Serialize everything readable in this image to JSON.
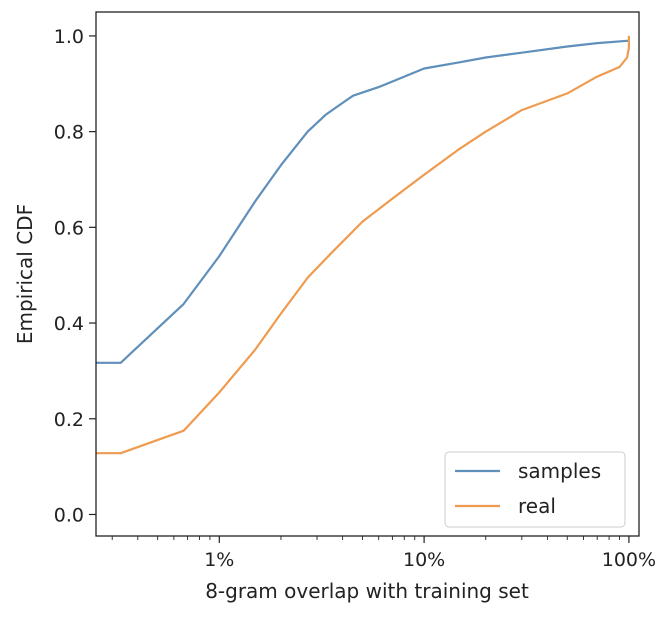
{
  "chart_data": {
    "type": "line",
    "title": "",
    "xlabel": "8-gram overlap with training set",
    "ylabel": "Empirical CDF",
    "xscale": "log",
    "xlim": [
      0.0025,
      1.12
    ],
    "ylim": [
      -0.045,
      1.05
    ],
    "xticks": [
      {
        "value": 0.01,
        "label": "1%"
      },
      {
        "value": 0.1,
        "label": "10%"
      },
      {
        "value": 1.0,
        "label": "100%"
      }
    ],
    "yticks": [
      {
        "value": 0.0,
        "label": "0.0"
      },
      {
        "value": 0.2,
        "label": "0.2"
      },
      {
        "value": 0.4,
        "label": "0.4"
      },
      {
        "value": 0.6,
        "label": "0.6"
      },
      {
        "value": 0.8,
        "label": "0.8"
      },
      {
        "value": 1.0,
        "label": "1.0"
      }
    ],
    "legend_position": "lower-right",
    "series": [
      {
        "name": "samples",
        "color": "#5f8fbb",
        "x": [
          0.0025,
          0.0033,
          0.0067,
          0.01,
          0.015,
          0.02,
          0.027,
          0.033,
          0.04,
          0.045,
          0.06,
          0.08,
          0.1,
          0.15,
          0.2,
          0.3,
          0.5,
          0.7,
          1.0
        ],
        "y": [
          0.317,
          0.317,
          0.44,
          0.54,
          0.655,
          0.73,
          0.8,
          0.835,
          0.86,
          0.875,
          0.893,
          0.915,
          0.932,
          0.945,
          0.955,
          0.965,
          0.978,
          0.985,
          0.99
        ]
      },
      {
        "name": "real",
        "color": "#ef9b4f",
        "x": [
          0.0025,
          0.0033,
          0.0067,
          0.01,
          0.015,
          0.02,
          0.027,
          0.035,
          0.05,
          0.07,
          0.1,
          0.15,
          0.2,
          0.3,
          0.5,
          0.7,
          0.9,
          0.98,
          1.0,
          1.0
        ],
        "y": [
          0.128,
          0.128,
          0.175,
          0.255,
          0.345,
          0.42,
          0.495,
          0.545,
          0.612,
          0.66,
          0.71,
          0.765,
          0.8,
          0.845,
          0.88,
          0.915,
          0.935,
          0.955,
          0.975,
          1.0
        ]
      }
    ]
  }
}
